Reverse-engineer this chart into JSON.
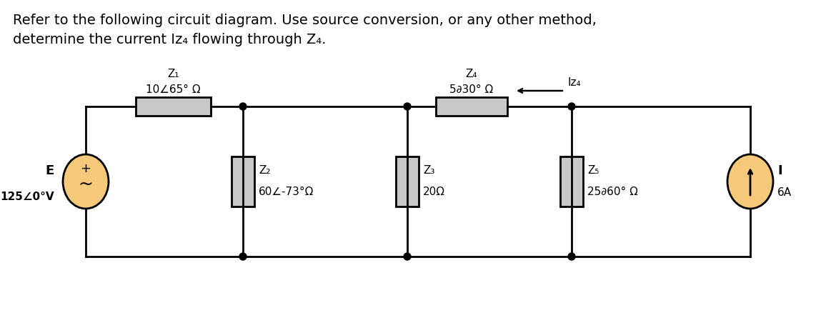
{
  "title_line1": "Refer to the following circuit diagram. Use source conversion, or any other method,",
  "title_line2": "determine the current Iz₄ flowing through Z₄.",
  "background_color": "#ffffff",
  "wire_color": "#000000",
  "component_fill": "#c8c8c8",
  "source_fill": "#f5c87a",
  "Z1_label": "Z₁",
  "Z1_value": "10∠65° Ω",
  "Z2_label": "Z₂",
  "Z2_value": "60∠-73°Ω",
  "Z3_label": "Z₃",
  "Z3_value": "20Ω",
  "Z4_label": "Z₄",
  "Z4_value": "5∂30° Ω",
  "Z5_label": "Z₅",
  "Z5_value": "25∂60° Ω",
  "E_label": "E",
  "E_value": "125∠0°V",
  "I_label": "I",
  "I_value": "6A",
  "Iz4_label": "Iᴢ₄",
  "title_fontsize": 14,
  "label_fontsize": 11,
  "value_fontsize": 11
}
